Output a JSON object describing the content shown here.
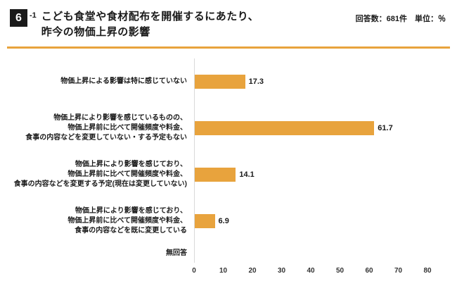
{
  "header": {
    "number": "6",
    "sub": "-1",
    "title_line1": "こども食堂や食材配布を開催するにあたり、",
    "title_line2": "昨今の物価上昇の影響",
    "meta": "回答数：681件　単位：％"
  },
  "chart_data": {
    "type": "bar",
    "orientation": "horizontal",
    "categories": [
      [
        "物価上昇による影響は特に感じていない"
      ],
      [
        "物価上昇により影響を感じているものの、",
        "物価上昇前に比べて開催頻度や料金、",
        "食事の内容などを変更していない・する予定もない"
      ],
      [
        "物価上昇により影響を感じており、",
        "物価上昇前に比べて開催頻度や料金、",
        "食事の内容などを変更する予定(現在は変更していない)"
      ],
      [
        "物価上昇により影響を感じており、",
        "物価上昇前に比べて開催頻度や料金、",
        "食事の内容などを既に変更している"
      ],
      [
        "無回答"
      ]
    ],
    "values": [
      17.3,
      61.7,
      14.1,
      6.9,
      null
    ],
    "value_labels": [
      "17.3",
      "61.7",
      "14.1",
      "6.9",
      ""
    ],
    "xlim": [
      0,
      80
    ],
    "x_ticks": [
      0,
      10,
      20,
      30,
      40,
      50,
      60,
      70,
      80
    ],
    "bar_color": "#E8A33D",
    "title": "こども食堂や食材配布を開催するにあたり、昨今の物価上昇の影響",
    "xlabel": "％",
    "ylabel": "",
    "legend": "none",
    "grid": "off"
  },
  "colors": {
    "accent": "#E8A33D",
    "badge_bg": "#1a1a1a",
    "text": "#1a1a1a",
    "background": "#ffffff"
  }
}
